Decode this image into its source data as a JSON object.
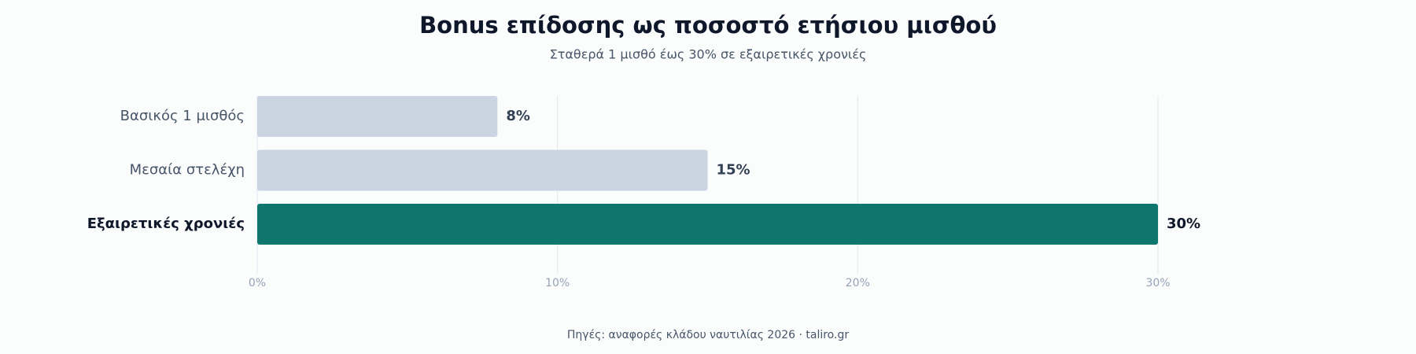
{
  "chart_data": {
    "type": "hbar",
    "title": "Bonus επίδοσης ως ποσοστό ετήσιου μισθού",
    "subtitle": "Σταθερά 1 μισθό έως 30% σε εξαιρετικές χρονιές",
    "categories": [
      "Βασικός 1 μισθός",
      "Μεσαία στελέχη",
      "Εξαιρετικές χρονιές"
    ],
    "values": [
      8,
      15,
      30
    ],
    "value_labels": [
      "8%",
      "15%",
      "30%"
    ],
    "colors": [
      "#cbd5e1",
      "#cbd5e1",
      "#0f766e"
    ],
    "highlight_index": 2,
    "xlim": [
      0,
      30
    ],
    "xticks": [
      {
        "value": 0,
        "label": "0%"
      },
      {
        "value": 10,
        "label": "10%"
      },
      {
        "value": 20,
        "label": "20%"
      },
      {
        "value": 30,
        "label": "30%"
      }
    ],
    "grid": true,
    "source": "Πηγές: αναφορές κλάδου ναυτιλίας 2026 · taliro.gr"
  }
}
